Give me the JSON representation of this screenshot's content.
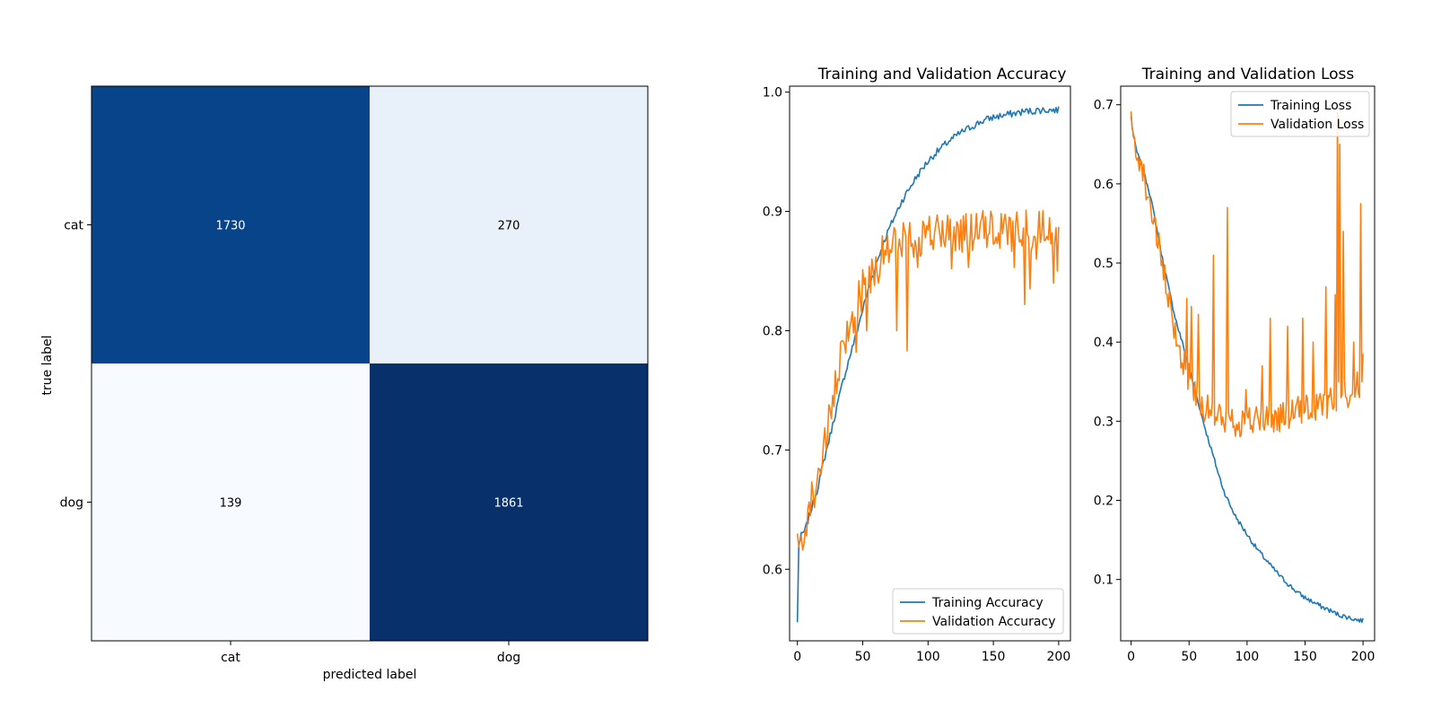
{
  "chart_data": [
    {
      "type": "heatmap",
      "title": "",
      "xlabel": "predicted label",
      "ylabel": "true label",
      "x_categories": [
        "cat",
        "dog"
      ],
      "y_categories": [
        "cat",
        "dog"
      ],
      "values": [
        [
          1730,
          270
        ],
        [
          139,
          1861
        ]
      ],
      "colormap": "Blues",
      "colorbar": false
    },
    {
      "type": "line",
      "title": "Training and Validation Accuracy",
      "xlabel": "",
      "ylabel": "",
      "xlim": [
        -6,
        209
      ],
      "ylim": [
        0.54,
        1.005
      ],
      "xticks": [
        0,
        50,
        100,
        150,
        200
      ],
      "yticks": [
        0.6,
        0.7,
        0.8,
        0.9,
        1.0
      ],
      "legend_position": "lower-right",
      "x_range": [
        0,
        200
      ],
      "series": [
        {
          "name": "Training Accuracy",
          "color": "#1f77b4",
          "points": [
            [
              0,
              0.555
            ],
            [
              1,
              0.62
            ],
            [
              3,
              0.628
            ],
            [
              6,
              0.633
            ],
            [
              10,
              0.648
            ],
            [
              15,
              0.666
            ],
            [
              20,
              0.69
            ],
            [
              25,
              0.712
            ],
            [
              30,
              0.735
            ],
            [
              35,
              0.758
            ],
            [
              40,
              0.778
            ],
            [
              45,
              0.797
            ],
            [
              50,
              0.818
            ],
            [
              55,
              0.837
            ],
            [
              60,
              0.855
            ],
            [
              65,
              0.871
            ],
            [
              70,
              0.885
            ],
            [
              75,
              0.897
            ],
            [
              80,
              0.909
            ],
            [
              85,
              0.918
            ],
            [
              90,
              0.927
            ],
            [
              95,
              0.935
            ],
            [
              100,
              0.942
            ],
            [
              105,
              0.948
            ],
            [
              110,
              0.953
            ],
            [
              115,
              0.958
            ],
            [
              120,
              0.962
            ],
            [
              125,
              0.966
            ],
            [
              130,
              0.969
            ],
            [
              135,
              0.972
            ],
            [
              140,
              0.975
            ],
            [
              145,
              0.977
            ],
            [
              150,
              0.979
            ],
            [
              155,
              0.98
            ],
            [
              160,
              0.981
            ],
            [
              165,
              0.982
            ],
            [
              170,
              0.983
            ],
            [
              175,
              0.984
            ],
            [
              180,
              0.984
            ],
            [
              185,
              0.985
            ],
            [
              190,
              0.985
            ],
            [
              195,
              0.985
            ],
            [
              200,
              0.985
            ]
          ],
          "noise": 0.003
        },
        {
          "name": "Validation Accuracy",
          "color": "#ff7f0e",
          "points": [
            [
              0,
              0.615
            ],
            [
              5,
              0.635
            ],
            [
              10,
              0.655
            ],
            [
              15,
              0.675
            ],
            [
              20,
              0.7
            ],
            [
              25,
              0.725
            ],
            [
              30,
              0.755
            ],
            [
              35,
              0.785
            ],
            [
              40,
              0.805
            ],
            [
              45,
              0.82
            ],
            [
              50,
              0.835
            ],
            [
              55,
              0.845
            ],
            [
              60,
              0.855
            ],
            [
              65,
              0.862
            ],
            [
              70,
              0.868
            ],
            [
              75,
              0.872
            ],
            [
              80,
              0.876
            ],
            [
              90,
              0.879
            ],
            [
              100,
              0.881
            ],
            [
              120,
              0.882
            ],
            [
              140,
              0.883
            ],
            [
              160,
              0.884
            ],
            [
              180,
              0.885
            ],
            [
              200,
              0.886
            ]
          ],
          "noise": 0.018,
          "spikes": [
            [
              45,
              0.782
            ],
            [
              53,
              0.8
            ],
            [
              76,
              0.8
            ],
            [
              84,
              0.783
            ],
            [
              92,
              0.853
            ],
            [
              118,
              0.852
            ],
            [
              131,
              0.853
            ],
            [
              166,
              0.853
            ],
            [
              174,
              0.822
            ],
            [
              178,
              0.835
            ],
            [
              183,
              0.86
            ],
            [
              185,
              0.9
            ],
            [
              196,
              0.84
            ],
            [
              199,
              0.85
            ],
            [
              200,
              0.887
            ]
          ]
        }
      ]
    },
    {
      "type": "line",
      "title": "Training and Validation Loss",
      "xlabel": "",
      "ylabel": "",
      "xlim": [
        -9,
        210
      ],
      "ylim": [
        0.0225,
        0.7235
      ],
      "xticks": [
        0,
        50,
        100,
        150,
        200
      ],
      "yticks": [
        0.1,
        0.2,
        0.3,
        0.4,
        0.5,
        0.6,
        0.7
      ],
      "legend_position": "upper-right",
      "x_range": [
        0,
        200
      ],
      "series": [
        {
          "name": "Training Loss",
          "color": "#1f77b4",
          "points": [
            [
              0,
              0.685
            ],
            [
              2,
              0.66
            ],
            [
              5,
              0.64
            ],
            [
              10,
              0.618
            ],
            [
              15,
              0.595
            ],
            [
              20,
              0.56
            ],
            [
              25,
              0.52
            ],
            [
              30,
              0.485
            ],
            [
              35,
              0.45
            ],
            [
              40,
              0.42
            ],
            [
              45,
              0.395
            ],
            [
              50,
              0.368
            ],
            [
              55,
              0.34
            ],
            [
              60,
              0.312
            ],
            [
              65,
              0.285
            ],
            [
              70,
              0.26
            ],
            [
              75,
              0.235
            ],
            [
              80,
              0.212
            ],
            [
              85,
              0.195
            ],
            [
              90,
              0.18
            ],
            [
              95,
              0.168
            ],
            [
              100,
              0.157
            ],
            [
              105,
              0.146
            ],
            [
              110,
              0.136
            ],
            [
              115,
              0.127
            ],
            [
              120,
              0.118
            ],
            [
              125,
              0.11
            ],
            [
              130,
              0.102
            ],
            [
              135,
              0.095
            ],
            [
              140,
              0.088
            ],
            [
              145,
              0.082
            ],
            [
              150,
              0.077
            ],
            [
              155,
              0.073
            ],
            [
              160,
              0.069
            ],
            [
              165,
              0.065
            ],
            [
              170,
              0.062
            ],
            [
              175,
              0.058
            ],
            [
              180,
              0.055
            ],
            [
              185,
              0.053
            ],
            [
              190,
              0.051
            ],
            [
              195,
              0.049
            ],
            [
              200,
              0.048
            ]
          ],
          "noise": 0.003
        },
        {
          "name": "Validation Loss",
          "color": "#ff7f0e",
          "points": [
            [
              0,
              0.675
            ],
            [
              5,
              0.645
            ],
            [
              10,
              0.615
            ],
            [
              15,
              0.585
            ],
            [
              20,
              0.55
            ],
            [
              25,
              0.51
            ],
            [
              30,
              0.47
            ],
            [
              35,
              0.43
            ],
            [
              40,
              0.4
            ],
            [
              45,
              0.375
            ],
            [
              50,
              0.355
            ],
            [
              55,
              0.34
            ],
            [
              60,
              0.325
            ],
            [
              65,
              0.315
            ],
            [
              70,
              0.308
            ],
            [
              80,
              0.302
            ],
            [
              90,
              0.3
            ],
            [
              100,
              0.3
            ],
            [
              120,
              0.302
            ],
            [
              140,
              0.31
            ],
            [
              160,
              0.318
            ],
            [
              180,
              0.33
            ],
            [
              200,
              0.35
            ]
          ],
          "noise": 0.02,
          "spikes": [
            [
              48,
              0.455
            ],
            [
              52,
              0.445
            ],
            [
              58,
              0.435
            ],
            [
              71,
              0.51
            ],
            [
              83,
              0.57
            ],
            [
              99,
              0.34
            ],
            [
              113,
              0.37
            ],
            [
              120,
              0.43
            ],
            [
              135,
              0.42
            ],
            [
              148,
              0.43
            ],
            [
              157,
              0.4
            ],
            [
              168,
              0.47
            ],
            [
              176,
              0.46
            ],
            [
              178,
              0.69
            ],
            [
              179,
              0.35
            ],
            [
              180,
              0.65
            ],
            [
              181,
              0.33
            ],
            [
              183,
              0.54
            ],
            [
              192,
              0.4
            ],
            [
              197,
              0.33
            ],
            [
              198,
              0.575
            ],
            [
              199,
              0.35
            ],
            [
              200,
              0.385
            ]
          ]
        }
      ]
    }
  ]
}
